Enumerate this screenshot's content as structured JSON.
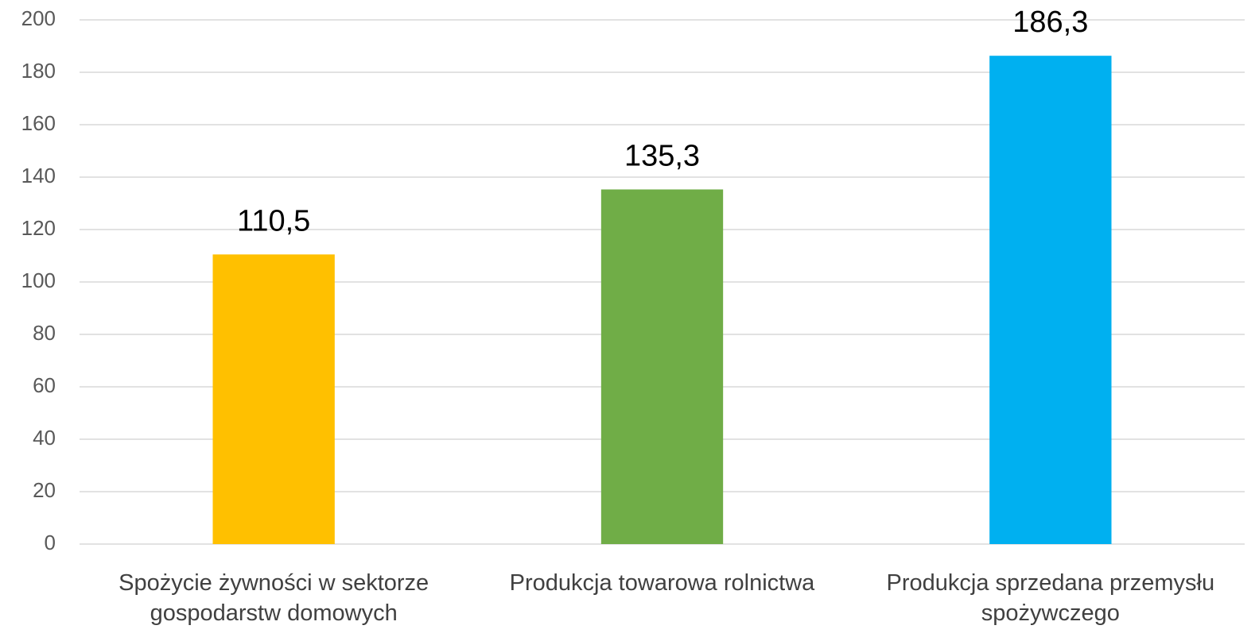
{
  "chart_data": {
    "type": "bar",
    "categories": [
      "Spożycie żywności w sektorze gospodarstw domowych",
      "Produkcja towarowa rolnictwa",
      "Produkcja sprzedana przemysłu spożywczego"
    ],
    "values": [
      110.5,
      135.3,
      186.3
    ],
    "value_labels": [
      "110,5",
      "135,3",
      "186,3"
    ],
    "colors": [
      "#ffc000",
      "#70ad47",
      "#00b0f0"
    ],
    "ylim": [
      0,
      200
    ],
    "yticks": [
      0,
      20,
      40,
      60,
      80,
      100,
      120,
      140,
      160,
      180,
      200
    ],
    "grid": true
  }
}
